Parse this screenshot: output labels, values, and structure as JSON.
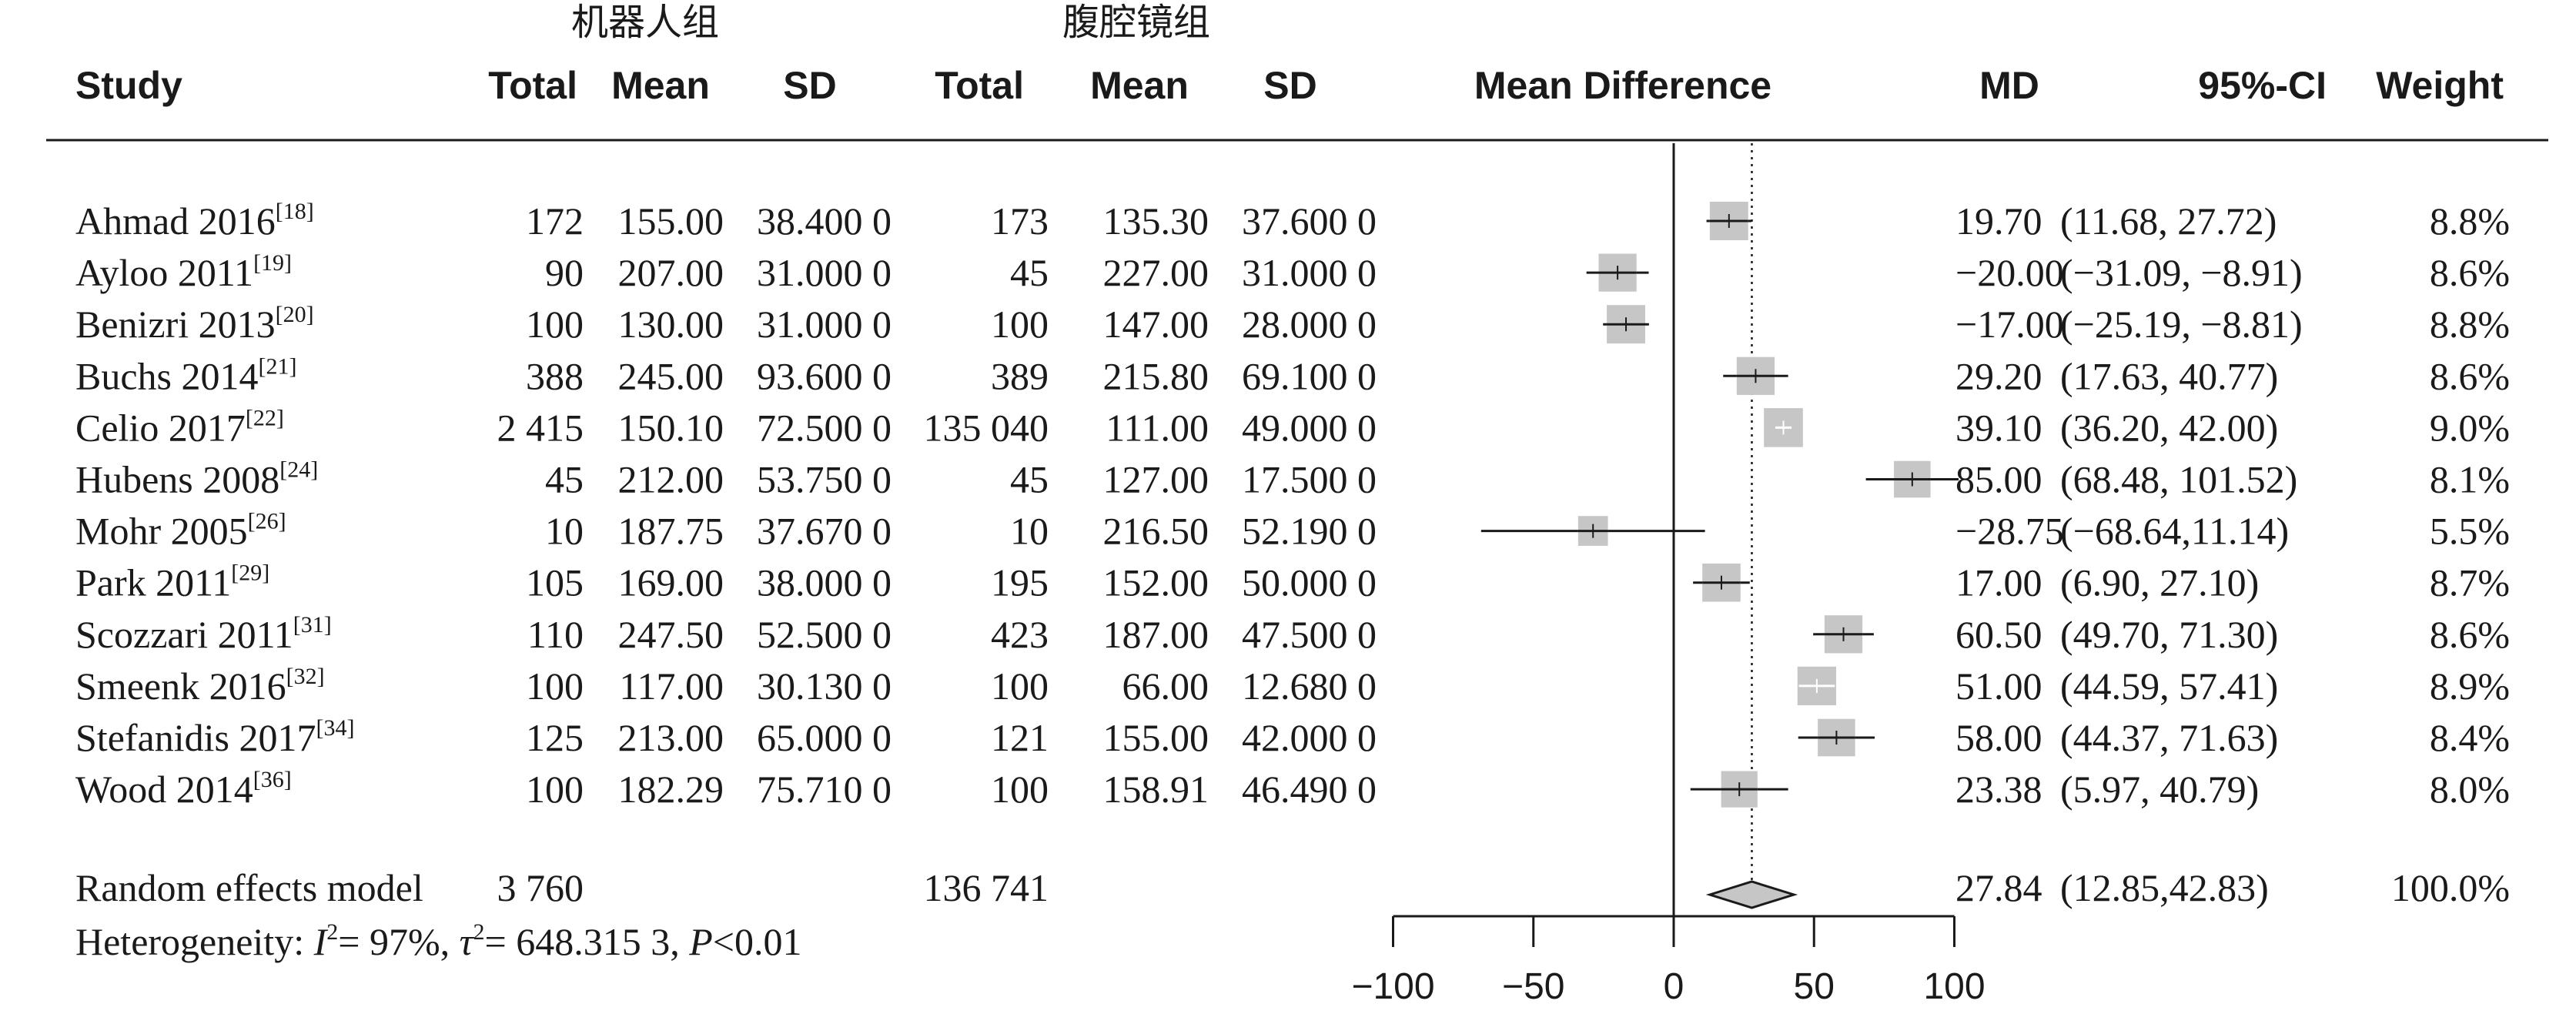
{
  "group_headers": {
    "robot": "机器人组",
    "laparoscopy": "腹腔镜组"
  },
  "columns": {
    "study": "Study",
    "total1": "Total",
    "mean1": "Mean",
    "sd1": "SD",
    "total2": "Total",
    "mean2": "Mean",
    "sd2": "SD",
    "plot": "Mean Difference",
    "md": "MD",
    "ci": "95%-CI",
    "weight": "Weight"
  },
  "chart_data": {
    "type": "forest",
    "xlim": [
      -100,
      100
    ],
    "x_ticks": [
      -100,
      -50,
      0,
      50,
      100
    ],
    "x_tick_labels": [
      "−100",
      "−50",
      "0",
      "50",
      "100"
    ],
    "null_line": 0,
    "pooled_reference_line": 27.84,
    "studies": [
      {
        "name": "Ahmad 2016",
        "ref": "[18]",
        "total1": "172",
        "mean1": "155.00",
        "sd1": "38.400 0",
        "total2": "173",
        "mean2": "135.30",
        "sd2": "37.600 0",
        "md": 19.7,
        "lower": 11.68,
        "upper": 27.72,
        "md_text": "19.70",
        "ci_text": "(11.68, 27.72)",
        "weight": 8.8,
        "weight_text": "8.8%"
      },
      {
        "name": "Ayloo 2011",
        "ref": "[19]",
        "total1": "90",
        "mean1": "207.00",
        "sd1": "31.000 0",
        "total2": "45",
        "mean2": "227.00",
        "sd2": "31.000 0",
        "md": -20.0,
        "lower": -31.09,
        "upper": -8.91,
        "md_text": "−20.00",
        "ci_text": "(−31.09, −8.91)",
        "weight": 8.6,
        "weight_text": "8.6%"
      },
      {
        "name": "Benizri 2013",
        "ref": "[20]",
        "total1": "100",
        "mean1": "130.00",
        "sd1": "31.000 0",
        "total2": "100",
        "mean2": "147.00",
        "sd2": "28.000 0",
        "md": -17.0,
        "lower": -25.19,
        "upper": -8.81,
        "md_text": "−17.00",
        "ci_text": "(−25.19, −8.81)",
        "weight": 8.8,
        "weight_text": "8.8%"
      },
      {
        "name": "Buchs 2014",
        "ref": "[21]",
        "total1": "388",
        "mean1": "245.00",
        "sd1": "93.600 0",
        "total2": "389",
        "mean2": "215.80",
        "sd2": "69.100 0",
        "md": 29.2,
        "lower": 17.63,
        "upper": 40.77,
        "md_text": "29.20",
        "ci_text": "(17.63, 40.77)",
        "weight": 8.6,
        "weight_text": "8.6%"
      },
      {
        "name": "Celio 2017",
        "ref": "[22]",
        "total1": "2 415",
        "mean1": "150.10",
        "sd1": "72.500 0",
        "total2": "135 040",
        "mean2": "111.00",
        "sd2": "49.000 0",
        "md": 39.1,
        "lower": 36.2,
        "upper": 42.0,
        "md_text": "39.10",
        "ci_text": "(36.20, 42.00)",
        "weight": 9.0,
        "weight_text": "9.0%"
      },
      {
        "name": "Hubens 2008",
        "ref": "[24]",
        "total1": "45",
        "mean1": "212.00",
        "sd1": "53.750 0",
        "total2": "45",
        "mean2": "127.00",
        "sd2": "17.500 0",
        "md": 85.0,
        "lower": 68.48,
        "upper": 101.52,
        "md_text": "85.00",
        "ci_text": "(68.48, 101.52)",
        "weight": 8.1,
        "weight_text": "8.1%"
      },
      {
        "name": "Mohr 2005",
        "ref": "[26]",
        "total1": "10",
        "mean1": "187.75",
        "sd1": "37.670 0",
        "total2": "10",
        "mean2": "216.50",
        "sd2": "52.190 0",
        "md": -28.75,
        "lower": -68.64,
        "upper": 11.14,
        "md_text": "−28.75",
        "ci_text": "(−68.64,11.14)",
        "weight": 5.5,
        "weight_text": "5.5%"
      },
      {
        "name": "Park 2011",
        "ref": "[29]",
        "total1": "105",
        "mean1": "169.00",
        "sd1": "38.000 0",
        "total2": "195",
        "mean2": "152.00",
        "sd2": "50.000 0",
        "md": 17.0,
        "lower": 6.9,
        "upper": 27.1,
        "md_text": "17.00",
        "ci_text": "(6.90, 27.10)",
        "weight": 8.7,
        "weight_text": "8.7%"
      },
      {
        "name": "Scozzari 2011",
        "ref": "[31]",
        "total1": "110",
        "mean1": "247.50",
        "sd1": "52.500 0",
        "total2": "423",
        "mean2": "187.00",
        "sd2": "47.500 0",
        "md": 60.5,
        "lower": 49.7,
        "upper": 71.3,
        "md_text": "60.50",
        "ci_text": "(49.70, 71.30)",
        "weight": 8.6,
        "weight_text": "8.6%"
      },
      {
        "name": "Smeenk 2016",
        "ref": "[32]",
        "total1": "100",
        "mean1": "117.00",
        "sd1": "30.130 0",
        "total2": "100",
        "mean2": "66.00",
        "sd2": "12.680 0",
        "md": 51.0,
        "lower": 44.59,
        "upper": 57.41,
        "md_text": "51.00",
        "ci_text": "(44.59, 57.41)",
        "weight": 8.9,
        "weight_text": "8.9%"
      },
      {
        "name": "Stefanidis 2017",
        "ref": "[34]",
        "total1": "125",
        "mean1": "213.00",
        "sd1": "65.000 0",
        "total2": "121",
        "mean2": "155.00",
        "sd2": "42.000 0",
        "md": 58.0,
        "lower": 44.37,
        "upper": 71.63,
        "md_text": "58.00",
        "ci_text": "(44.37, 71.63)",
        "weight": 8.4,
        "weight_text": "8.4%"
      },
      {
        "name": "Wood  2014",
        "ref": "[36]",
        "total1": "100",
        "mean1": "182.29",
        "sd1": "75.710 0",
        "total2": "100",
        "mean2": "158.91",
        "sd2": "46.490 0",
        "md": 23.38,
        "lower": 5.97,
        "upper": 40.79,
        "md_text": "23.38",
        "ci_text": "(5.97, 40.79)",
        "weight": 8.0,
        "weight_text": "8.0%"
      }
    ],
    "pooled": {
      "label": "Random effects model",
      "total1": "3 760",
      "total2": "136 741",
      "md": 27.84,
      "lower": 12.85,
      "upper": 42.83,
      "md_text": "27.84",
      "ci_text": "(12.85,42.83)",
      "weight_text": "100.0%"
    },
    "heterogeneity": {
      "prefix": "Heterogeneity: ",
      "i2_symbol": "I",
      "i2_value": "= 97%, ",
      "tau2_symbol": "τ",
      "tau2_value": "= 648.315 3, ",
      "p_symbol": "P",
      "p_value": "<0.01"
    },
    "colors": {
      "box": "#c6c6c6",
      "diamond": "#c6c6c6",
      "line": "#1a1a1a",
      "box_white_mark": "#ffffff"
    }
  }
}
